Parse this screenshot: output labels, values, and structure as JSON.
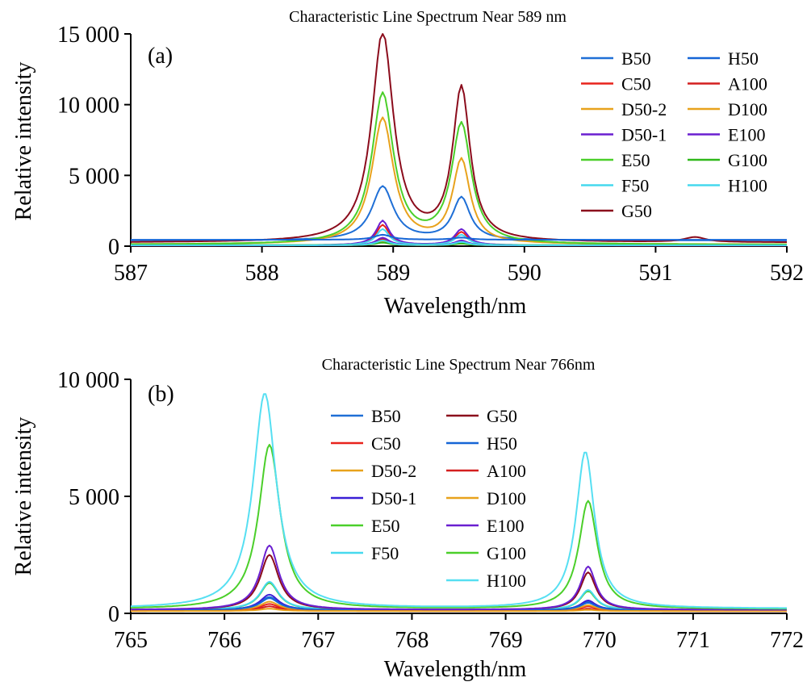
{
  "figure": {
    "panels": [
      {
        "label": "(a)",
        "title": "Characteristic Line Spectrum Near 589 nm",
        "xlabel": "Wavelength/nm",
        "ylabel": "Relative intensity"
      },
      {
        "label": "(b)",
        "title": "Characteristic Line Spectrum Near 766nm",
        "xlabel": "Wavelength/nm",
        "ylabel": "Relative intensity"
      }
    ]
  },
  "chart_data": [
    {
      "type": "line",
      "title": "Characteristic Line Spectrum Near 589 nm",
      "panel_label": "(a)",
      "xlabel": "Wavelength/nm",
      "ylabel": "Relative intensity",
      "xlim": [
        587,
        592
      ],
      "ylim": [
        0,
        15000
      ],
      "xticks": [
        587,
        588,
        589,
        590,
        591,
        592
      ],
      "xtick_labels": [
        "587",
        "588",
        "589",
        "590",
        "591",
        "592"
      ],
      "yticks": [
        0,
        5000,
        10000,
        15000
      ],
      "ytick_labels": [
        "0",
        "5 000",
        "10 000",
        "15 000"
      ],
      "grid": false,
      "legend_position": "top-right",
      "series": [
        {
          "name": "B50",
          "color": "#1f6fd6",
          "baseline": 400,
          "peaks": [
            [
              588.92,
              4200,
              0.1
            ],
            [
              589.52,
              3400,
              0.08
            ]
          ]
        },
        {
          "name": "C50",
          "color": "#e8231c",
          "baseline": 50,
          "peaks": [
            [
              588.92,
              1500,
              0.06
            ],
            [
              589.52,
              1000,
              0.06
            ]
          ]
        },
        {
          "name": "D50-2",
          "color": "#e8a21c",
          "baseline": 120,
          "peaks": [
            [
              588.92,
              9000,
              0.1
            ],
            [
              589.52,
              6000,
              0.08
            ]
          ]
        },
        {
          "name": "D50-1",
          "color": "#6a1fd0",
          "baseline": 60,
          "peaks": [
            [
              588.92,
              1800,
              0.06
            ],
            [
              589.52,
              1200,
              0.06
            ]
          ]
        },
        {
          "name": "E50",
          "color": "#4bcf2a",
          "baseline": 100,
          "peaks": [
            [
              588.92,
              10700,
              0.1
            ],
            [
              589.52,
              8500,
              0.09
            ]
          ]
        },
        {
          "name": "F50",
          "color": "#46d9ee",
          "baseline": 60,
          "peaks": [
            [
              588.92,
              1200,
              0.06
            ],
            [
              589.52,
              800,
              0.06
            ]
          ]
        },
        {
          "name": "G50",
          "color": "#8b0c1c",
          "baseline": 250,
          "peaks": [
            [
              588.92,
              15000,
              0.1
            ],
            [
              589.52,
              11000,
              0.08
            ],
            [
              591.3,
              600,
              0.1
            ]
          ]
        },
        {
          "name": "H50",
          "color": "#1565d6",
          "baseline": 450,
          "peaks": [
            [
              588.92,
              800,
              0.08
            ],
            [
              589.52,
              600,
              0.08
            ]
          ]
        },
        {
          "name": "A100",
          "color": "#d41f1f",
          "baseline": 50,
          "peaks": [
            [
              588.92,
              500,
              0.06
            ],
            [
              589.52,
              350,
              0.06
            ]
          ]
        },
        {
          "name": "D100",
          "color": "#e8a21c",
          "baseline": 60,
          "peaks": [
            [
              588.92,
              300,
              0.06
            ],
            [
              589.52,
              200,
              0.06
            ]
          ]
        },
        {
          "name": "E100",
          "color": "#6a1fd0",
          "baseline": 50,
          "peaks": [
            [
              588.92,
              600,
              0.06
            ],
            [
              589.52,
              400,
              0.06
            ]
          ]
        },
        {
          "name": "G100",
          "color": "#2fb81a",
          "baseline": 80,
          "peaks": [
            [
              588.92,
              250,
              0.06
            ],
            [
              589.52,
              180,
              0.06
            ]
          ]
        },
        {
          "name": "H100",
          "color": "#46d9ee",
          "baseline": 60,
          "peaks": [
            [
              588.92,
              400,
              0.06
            ],
            [
              589.52,
              300,
              0.06
            ]
          ]
        }
      ]
    },
    {
      "type": "line",
      "title": "Characteristic Line Spectrum Near 766nm",
      "panel_label": "(b)",
      "xlabel": "Wavelength/nm",
      "ylabel": "Relative intensity",
      "xlim": [
        765,
        772
      ],
      "ylim": [
        0,
        10000
      ],
      "xticks": [
        765,
        766,
        767,
        768,
        769,
        770,
        771,
        772
      ],
      "xtick_labels": [
        "765",
        "766",
        "767",
        "768",
        "769",
        "770",
        "771",
        "772"
      ],
      "yticks": [
        0,
        5000,
        10000
      ],
      "ytick_labels": [
        "0",
        "5 000",
        "10 000"
      ],
      "grid": false,
      "legend_position": "top-center",
      "series": [
        {
          "name": "B50",
          "color": "#1f6fd6",
          "baseline": 150,
          "peaks": [
            [
              766.48,
              700,
              0.12
            ],
            [
              769.88,
              500,
              0.1
            ]
          ]
        },
        {
          "name": "C50",
          "color": "#e8231c",
          "baseline": 100,
          "peaks": [
            [
              766.48,
              400,
              0.12
            ],
            [
              769.88,
              300,
              0.1
            ]
          ]
        },
        {
          "name": "D50-2",
          "color": "#e8a21c",
          "baseline": 120,
          "peaks": [
            [
              766.48,
              500,
              0.12
            ],
            [
              769.88,
              350,
              0.1
            ]
          ]
        },
        {
          "name": "D50-1",
          "color": "#3a1fd6",
          "baseline": 130,
          "peaks": [
            [
              766.48,
              800,
              0.12
            ],
            [
              769.88,
              550,
              0.1
            ]
          ]
        },
        {
          "name": "E50",
          "color": "#4bcf2a",
          "baseline": 150,
          "peaks": [
            [
              766.48,
              1300,
              0.12
            ],
            [
              769.88,
              950,
              0.1
            ]
          ]
        },
        {
          "name": "F50",
          "color": "#46d9ee",
          "baseline": 150,
          "peaks": [
            [
              766.48,
              1350,
              0.12
            ],
            [
              769.88,
              1000,
              0.1
            ]
          ]
        },
        {
          "name": "G50",
          "color": "#8b0c1c",
          "baseline": 150,
          "peaks": [
            [
              766.48,
              2500,
              0.12
            ],
            [
              769.88,
              1750,
              0.1
            ]
          ]
        },
        {
          "name": "H50",
          "color": "#1565d6",
          "baseline": 140,
          "peaks": [
            [
              766.48,
              650,
              0.12
            ],
            [
              769.88,
              450,
              0.1
            ]
          ]
        },
        {
          "name": "A100",
          "color": "#d41f1f",
          "baseline": 100,
          "peaks": [
            [
              766.48,
              300,
              0.12
            ],
            [
              769.88,
              200,
              0.1
            ]
          ]
        },
        {
          "name": "D100",
          "color": "#e8a21c",
          "baseline": 100,
          "peaks": [
            [
              766.48,
              200,
              0.12
            ],
            [
              769.88,
              150,
              0.1
            ]
          ]
        },
        {
          "name": "E100",
          "color": "#6a1fd0",
          "baseline": 150,
          "peaks": [
            [
              766.48,
              2900,
              0.12
            ],
            [
              769.88,
              2000,
              0.1
            ]
          ]
        },
        {
          "name": "G100",
          "color": "#4bcf2a",
          "baseline": 180,
          "peaks": [
            [
              766.48,
              7200,
              0.14
            ],
            [
              769.88,
              4800,
              0.12
            ]
          ]
        },
        {
          "name": "H100",
          "color": "#56dff2",
          "baseline": 200,
          "peaks": [
            [
              766.43,
              9400,
              0.15
            ],
            [
              769.85,
              6900,
              0.12
            ]
          ]
        }
      ]
    }
  ]
}
